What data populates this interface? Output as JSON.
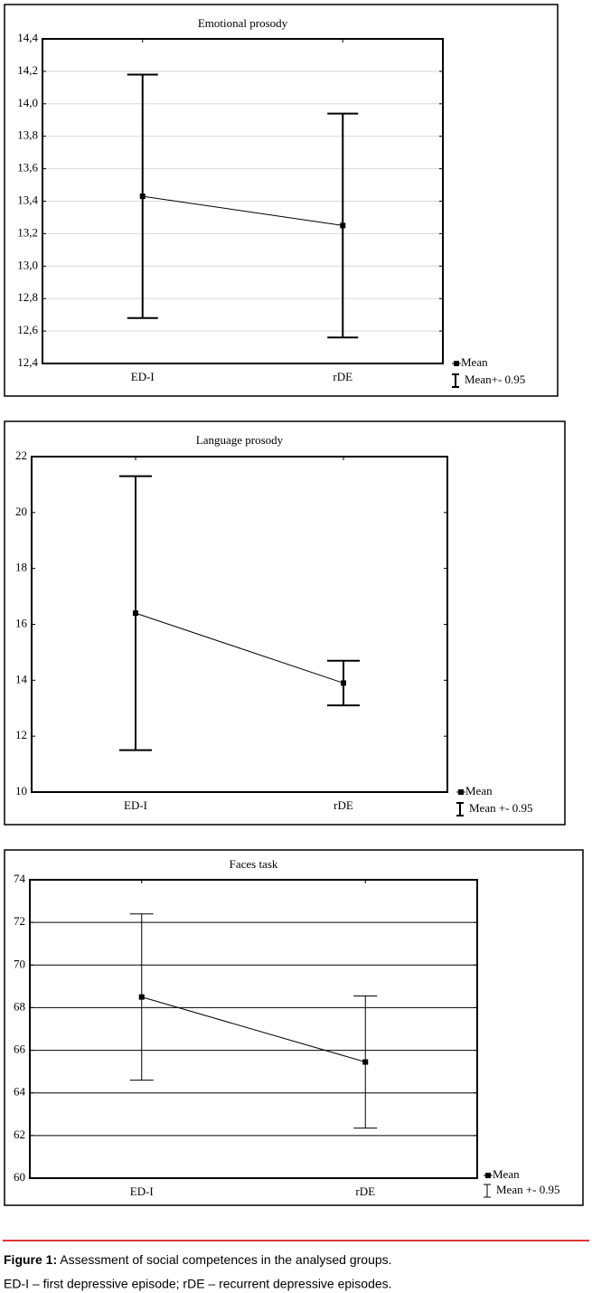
{
  "chart_data": [
    {
      "type": "errorbar",
      "title": "Emotional prosody",
      "categories": [
        "ED-I",
        "rDE"
      ],
      "series": [
        {
          "name": "Mean",
          "color": "#000000",
          "values": [
            13.43,
            13.25
          ],
          "errors": [
            0.75,
            0.69
          ]
        }
      ],
      "error_legend": "Mean+- 0.95",
      "ylim": [
        12.4,
        14.4
      ],
      "yticks": [
        {
          "value": 12.4,
          "label": "12,4"
        },
        {
          "value": 12.6,
          "label": "12,6"
        },
        {
          "value": 12.8,
          "label": "12,8"
        },
        {
          "value": 13.0,
          "label": "13,0"
        },
        {
          "value": 13.2,
          "label": "13,2"
        },
        {
          "value": 13.4,
          "label": "13,4"
        },
        {
          "value": 13.6,
          "label": "13,6"
        },
        {
          "value": 13.8,
          "label": "13,8"
        },
        {
          "value": 14.0,
          "label": "14,0"
        },
        {
          "value": 14.2,
          "label": "14,2"
        },
        {
          "value": 14.4,
          "label": "14,4"
        }
      ],
      "grid": true,
      "grid_color": "#d9d9d9"
    },
    {
      "type": "errorbar",
      "title": "Language prosody",
      "categories": [
        "ED-I",
        "rDE"
      ],
      "series": [
        {
          "name": "Mean",
          "color": "#000000",
          "values": [
            16.4,
            13.9
          ],
          "errors": [
            4.9,
            0.8
          ]
        }
      ],
      "error_legend": "Mean +- 0.95",
      "ylim": [
        10,
        22
      ],
      "yticks": [
        10,
        12,
        14,
        16,
        18,
        20,
        22
      ],
      "grid": false
    },
    {
      "type": "errorbar",
      "title": "Faces task",
      "categories": [
        "ED-I",
        "rDE"
      ],
      "series": [
        {
          "name": "Mean",
          "color": "#000000",
          "values": [
            68.5,
            65.45
          ],
          "errors": [
            3.9,
            3.1
          ]
        }
      ],
      "error_legend": "Mean +- 0.95",
      "ylim": [
        60,
        74
      ],
      "yticks": [
        60,
        62,
        64,
        66,
        68,
        70,
        72,
        74
      ],
      "grid": true,
      "grid_color": "#000000"
    }
  ],
  "caption": {
    "label": "Figure 1:",
    "text": "Assessment of social competences in the analysed groups.",
    "note": "ED-I – first depressive episode; rDE – recurrent depressive episodes."
  }
}
